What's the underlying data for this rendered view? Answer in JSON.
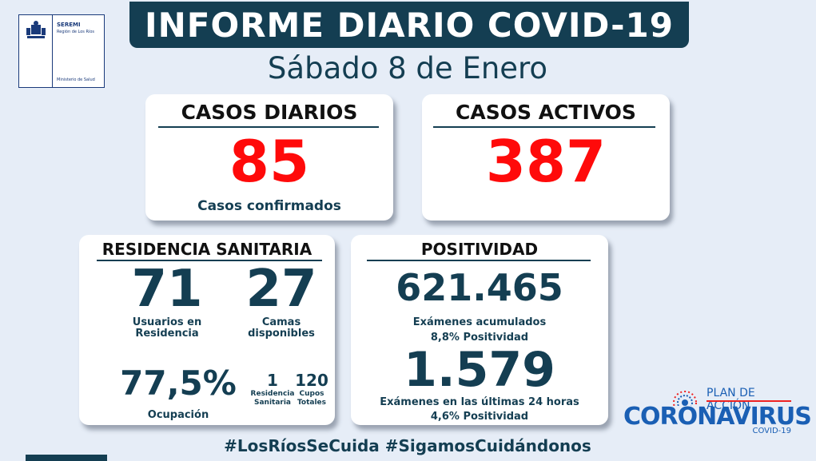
{
  "header": {
    "title": "INFORME DIARIO COVID-19",
    "date": "Sábado 8 de Enero"
  },
  "logo": {
    "line1": "SEREMI",
    "line2": "Región de Los Ríos",
    "line3": "Ministerio de Salud"
  },
  "casos_diarios": {
    "title": "CASOS DIARIOS",
    "value": "85",
    "caption": "Casos confirmados"
  },
  "casos_activos": {
    "title": "CASOS ACTIVOS",
    "value": "387"
  },
  "residencia": {
    "title": "RESIDENCIA SANITARIA",
    "usuarios_value": "71",
    "usuarios_label_1": "Usuarios en",
    "usuarios_label_2": "Residencia",
    "camas_value": "27",
    "camas_label_1": "Camas",
    "camas_label_2": "disponibles",
    "ocupacion_value": "77,5%",
    "ocupacion_label": "Ocupación",
    "residencias_value": "1",
    "residencias_label_1": "Residencia",
    "residencias_label_2": "Sanitaria",
    "cupos_value": "120",
    "cupos_label_1": "Cupos",
    "cupos_label_2": "Totales"
  },
  "positividad": {
    "title": "POSITIVIDAD",
    "acumulados_value": "621.465",
    "acumulados_label": "Exámenes  acumulados",
    "acumulados_pos": "8,8% Positividad",
    "ultimas_value": "1.579",
    "ultimas_label": "Exámenes en las últimas 24 horas",
    "ultimas_pos": "4,6% Positividad"
  },
  "hashtags": "#LosRíosSeCuida  #SigamosCuidándonos",
  "plan": {
    "label": "PLAN DE ACCIÓN",
    "name": "CORONAVIRUS",
    "sub": "COVID-19"
  },
  "colors": {
    "navy": "#143e52",
    "red": "#ff0a0a",
    "blue": "#1a5fb4",
    "background": "#e6edf7"
  }
}
